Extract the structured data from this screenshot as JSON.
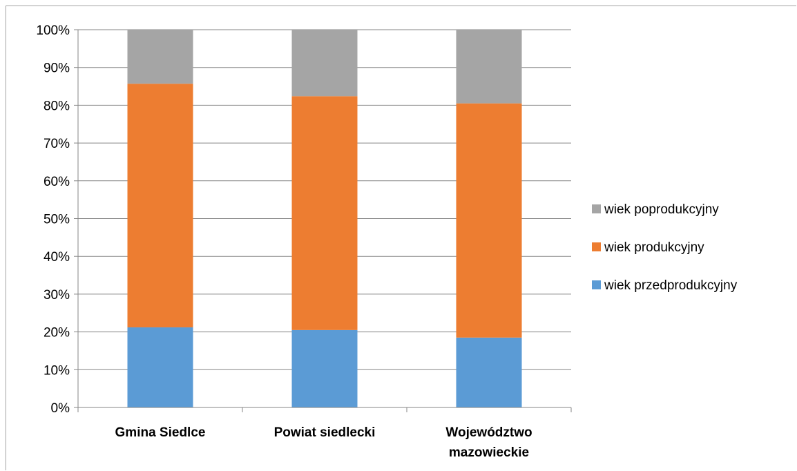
{
  "chart_data": {
    "type": "bar",
    "stacked": "percent",
    "categories": [
      [
        "Gmina Siedlce"
      ],
      [
        "Powiat siedlecki"
      ],
      [
        "Województwo",
        "mazowieckie"
      ]
    ],
    "series": [
      {
        "name": "wiek przedprodukcyjny",
        "color": "#5b9bd5",
        "values": [
          21.2,
          20.5,
          18.5
        ]
      },
      {
        "name": "wiek produkcyjny",
        "color": "#ed7d31",
        "values": [
          64.5,
          61.9,
          62.0
        ]
      },
      {
        "name": "wiek poprodukcyjny",
        "color": "#a5a5a5",
        "values": [
          14.3,
          17.6,
          19.5
        ]
      }
    ],
    "ylim": [
      0,
      100
    ],
    "yticks": [
      "0%",
      "10%",
      "20%",
      "30%",
      "40%",
      "50%",
      "60%",
      "70%",
      "80%",
      "90%",
      "100%"
    ],
    "grid": true,
    "legend_position": "right",
    "title": "",
    "xlabel": "",
    "ylabel": ""
  }
}
